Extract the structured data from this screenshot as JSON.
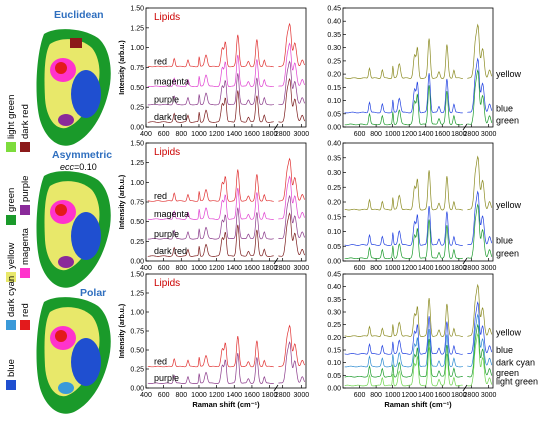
{
  "colors": {
    "light green": "#7ddc3c",
    "dark red": "#8b1a1a",
    "green": "#1a9a2a",
    "purple": "#8a2a9a",
    "yellow": "#e8e86a",
    "magenta": "#ff33cc",
    "dark cyan": "#3a9ad9",
    "red": "#e31a1c",
    "blue": "#1f4fd0",
    "Lipids": "#cc0000",
    "titleBlue": "#2f6fbf",
    "line_red": "#e03030",
    "line_magenta": "#e040d0",
    "line_purple": "#8a3a8a",
    "line_darkred": "#7a1a1a",
    "line_yellow": "#8a8a20",
    "line_blue": "#2040e0",
    "line_green": "#1a9a2a",
    "line_darkcyan": "#2a8ad0",
    "line_lightgreen": "#6ad44a"
  },
  "maps": [
    {
      "title": "Euclidean",
      "subtitle": ""
    },
    {
      "title": "Asymmetric",
      "subtitle_italic": "ecc",
      "subtitle_rest": "=0.10"
    },
    {
      "title": "Polar",
      "subtitle": ""
    }
  ],
  "legend": [
    {
      "name": "light green"
    },
    {
      "name": "dark red"
    },
    {
      "name": "green"
    },
    {
      "name": "purple"
    },
    {
      "name": "yellow"
    },
    {
      "name": "magenta"
    },
    {
      "name": "dark cyan"
    },
    {
      "name": "red"
    },
    {
      "name": "blue"
    }
  ],
  "chart_data": [
    {
      "type": "line",
      "panel": "left-top",
      "title": "Lipids",
      "ylabel": "Intensity (arb.u.)",
      "xlabel": "",
      "xlim": [
        400,
        3050
      ],
      "ylim": [
        0,
        1.5
      ],
      "yticks": [
        "0.00",
        "0.25",
        "0.50",
        "0.75",
        "1.00",
        "1.25",
        "1.50"
      ],
      "xticks": [
        "400",
        "600",
        "800",
        "1000",
        "1200",
        "1400",
        "1600",
        "1800",
        "2800",
        "3000"
      ],
      "series": [
        {
          "name": "red",
          "offset": 0.75
        },
        {
          "name": "magenta",
          "offset": 0.5
        },
        {
          "name": "purple",
          "offset": 0.27
        },
        {
          "name": "dark red",
          "offset": 0.05
        }
      ]
    },
    {
      "type": "line",
      "panel": "right-top",
      "xlim": [
        400,
        3050
      ],
      "ylim": [
        0,
        0.45
      ],
      "yticks": [
        "0.00",
        "0.05",
        "0.10",
        "0.15",
        "0.20",
        "0.25",
        "0.30",
        "0.35",
        "0.40",
        "0.45"
      ],
      "xticks": [
        "600",
        "800",
        "1000",
        "1200",
        "1400",
        "1600",
        "1800",
        "2800",
        "3000"
      ],
      "series": [
        {
          "name": "yellow",
          "offset": 0.18
        },
        {
          "name": "blue",
          "offset": 0.05
        },
        {
          "name": "green",
          "offset": 0.005
        }
      ]
    },
    {
      "type": "line",
      "panel": "left-mid",
      "title": "Lipids",
      "ylabel": "Intensity (arb.u.)",
      "xlim": [
        400,
        3050
      ],
      "ylim": [
        0,
        1.5
      ],
      "yticks": [
        "0.00",
        "0.25",
        "0.50",
        "0.75",
        "1.00",
        "1.25",
        "1.50"
      ],
      "xticks": [
        "400",
        "600",
        "800",
        "1000",
        "1200",
        "1400",
        "1600",
        "1800",
        "2800",
        "3000"
      ],
      "series": [
        {
          "name": "red",
          "offset": 0.75
        },
        {
          "name": "magenta",
          "offset": 0.52
        },
        {
          "name": "purple",
          "offset": 0.27
        },
        {
          "name": "dark red",
          "offset": 0.05
        }
      ]
    },
    {
      "type": "line",
      "panel": "right-mid",
      "xlim": [
        400,
        3050
      ],
      "ylim": [
        0,
        0.4
      ],
      "yticks": [
        "0.00",
        "0.05",
        "0.10",
        "0.15",
        "0.20",
        "0.25",
        "0.30",
        "0.35",
        "0.40"
      ],
      "xticks": [
        "600",
        "800",
        "1000",
        "1200",
        "1400",
        "1600",
        "1800",
        "2800",
        "3000"
      ],
      "series": [
        {
          "name": "yellow",
          "offset": 0.17
        },
        {
          "name": "blue",
          "offset": 0.05
        },
        {
          "name": "green",
          "offset": 0.005
        }
      ]
    },
    {
      "type": "line",
      "panel": "left-bottom",
      "title": "Lipids",
      "ylabel": "Intensity (arb.u.)",
      "xlabel": "Raman shift (cm⁻¹)",
      "xlim": [
        400,
        3050
      ],
      "ylim": [
        0,
        1.5
      ],
      "yticks": [
        "0.00",
        "0.25",
        "0.50",
        "0.75",
        "1.00",
        "1.25",
        "1.50"
      ],
      "xticks": [
        "400",
        "600",
        "800",
        "1000",
        "1200",
        "1400",
        "1600",
        "1800",
        "2800",
        "3000"
      ],
      "series": [
        {
          "name": "red",
          "offset": 0.27
        },
        {
          "name": "purple",
          "offset": 0.05
        }
      ]
    },
    {
      "type": "line",
      "panel": "right-bottom",
      "xlabel": "Raman shift (cm⁻¹)",
      "xlim": [
        400,
        3050
      ],
      "ylim": [
        0,
        0.45
      ],
      "yticks": [
        "0.00",
        "0.05",
        "0.10",
        "0.15",
        "0.20",
        "0.25",
        "0.30",
        "0.35",
        "0.40",
        "0.45"
      ],
      "xticks": [
        "600",
        "800",
        "1000",
        "1200",
        "1400",
        "1600",
        "1800",
        "2800",
        "3000"
      ],
      "series": [
        {
          "name": "yellow",
          "offset": 0.2
        },
        {
          "name": "blue",
          "offset": 0.13
        },
        {
          "name": "dark cyan",
          "offset": 0.08
        },
        {
          "name": "green",
          "offset": 0.04
        },
        {
          "name": "light green",
          "offset": 0.005
        }
      ]
    }
  ]
}
